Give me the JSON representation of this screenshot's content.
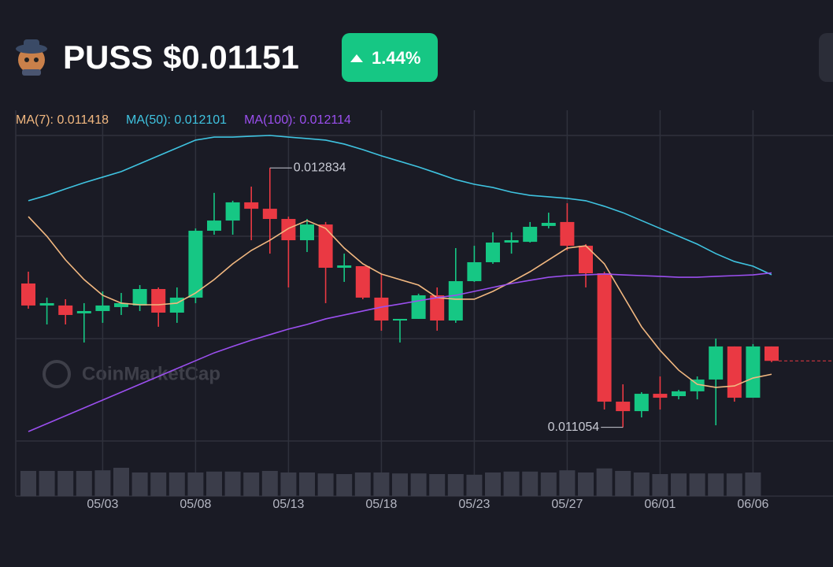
{
  "header": {
    "symbol": "PUSS",
    "price": "$0.01151",
    "change": "1.44%"
  },
  "chart_data": {
    "type": "candlestick",
    "watermark": "CoinMarketCap",
    "categories": [
      null,
      null,
      null,
      null,
      "05/03",
      null,
      null,
      null,
      null,
      "05/08",
      null,
      null,
      null,
      null,
      "05/13",
      null,
      null,
      null,
      null,
      "05/18",
      null,
      null,
      null,
      null,
      "05/23",
      null,
      null,
      null,
      null,
      "05/27",
      null,
      null,
      null,
      null,
      "06/01",
      null,
      null,
      null,
      null,
      "06/06",
      null
    ],
    "open": [
      0.012041,
      0.01189,
      0.01189,
      0.011836,
      0.011852,
      0.011879,
      0.01189,
      0.012003,
      0.011841,
      0.011944,
      0.012403,
      0.012473,
      0.012598,
      0.012554,
      0.012484,
      0.012338,
      0.012446,
      0.012149,
      0.01216,
      0.011944,
      0.011787,
      0.011798,
      0.01196,
      0.011787,
      0.012057,
      0.012187,
      0.012322,
      0.012327,
      0.012436,
      0.012463,
      0.0123,
      0.012111,
      0.01123,
      0.011165,
      0.011284,
      0.011268,
      0.011301,
      0.011382,
      0.011609,
      0.011257,
      0.011609
    ],
    "high": [
      0.012122,
      0.011944,
      0.011933,
      0.011906,
      0.011987,
      0.011976,
      0.01203,
      0.012014,
      0.012014,
      0.012419,
      0.012663,
      0.012609,
      0.012706,
      0.012834,
      0.0125,
      0.012484,
      0.012463,
      0.012246,
      0.01216,
      0.012106,
      0.011798,
      0.011971,
      0.012014,
      0.012284,
      0.0123,
      0.012392,
      0.012392,
      0.012463,
      0.012527,
      0.012592,
      0.012311,
      0.012122,
      0.011349,
      0.011295,
      0.011403,
      0.011311,
      0.011403,
      0.011663,
      0.011609,
      0.011625,
      0.011609
    ],
    "low": [
      0.011868,
      0.01176,
      0.01176,
      0.011636,
      0.011771,
      0.011825,
      0.011852,
      0.011744,
      0.011771,
      0.011906,
      0.012376,
      0.012376,
      0.012338,
      0.012246,
      0.012014,
      0.012257,
      0.011906,
      0.012052,
      0.011933,
      0.011717,
      0.011636,
      0.011798,
      0.011717,
      0.011771,
      0.012052,
      0.012176,
      0.012246,
      0.012322,
      0.012419,
      0.012268,
      0.012014,
      0.011176,
      0.011054,
      0.011122,
      0.011176,
      0.011246,
      0.011246,
      0.011068,
      0.01123,
      0.011257,
      0.011501
    ],
    "close": [
      0.01189,
      0.011906,
      0.011825,
      0.011852,
      0.01189,
      0.011906,
      0.012003,
      0.011841,
      0.011944,
      0.012403,
      0.012473,
      0.012598,
      0.012554,
      0.012484,
      0.012338,
      0.012446,
      0.012149,
      0.012165,
      0.011944,
      0.011787,
      0.011798,
      0.01196,
      0.011787,
      0.012057,
      0.012187,
      0.012322,
      0.012338,
      0.01243,
      0.012457,
      0.0123,
      0.012111,
      0.01123,
      0.011165,
      0.011284,
      0.011257,
      0.011301,
      0.011382,
      0.011609,
      0.011257,
      0.011609,
      0.01151
    ],
    "volume": [
      80,
      80,
      80,
      80,
      82,
      90,
      75,
      75,
      75,
      75,
      78,
      78,
      75,
      80,
      75,
      75,
      72,
      70,
      75,
      75,
      72,
      72,
      70,
      70,
      68,
      75,
      78,
      78,
      75,
      82,
      75,
      88,
      80,
      75,
      70,
      72,
      72,
      72,
      72,
      75,
      null
    ],
    "vlim": [
      0,
      100
    ],
    "up_color": "#16c784",
    "down_color": "#ea3943",
    "volume_color": "#3b3d4a",
    "ylim": [
      0.01096,
      0.01323
    ],
    "series": [
      {
        "name": "MA(7): 0.011418",
        "color": "#f2b880",
        "values": [
          0.0125,
          0.012365,
          0.012203,
          0.012068,
          0.01196,
          0.011906,
          0.011895,
          0.011895,
          0.011906,
          0.011976,
          0.012068,
          0.012176,
          0.012268,
          0.012338,
          0.012419,
          0.012473,
          0.012419,
          0.012284,
          0.012176,
          0.012106,
          0.012068,
          0.01203,
          0.011944,
          0.011933,
          0.011933,
          0.011987,
          0.012052,
          0.012122,
          0.012203,
          0.012284,
          0.0123,
          0.012176,
          0.01196,
          0.011744,
          0.011582,
          0.011446,
          0.011349,
          0.011328,
          0.011338,
          0.011392,
          0.011418
        ]
      },
      {
        "name": "MA(50): 0.012101",
        "color": "#3fc3e0",
        "values": [
          0.012609,
          0.012646,
          0.01269,
          0.012733,
          0.012771,
          0.012809,
          0.012863,
          0.012917,
          0.012971,
          0.013025,
          0.013046,
          0.013046,
          0.013052,
          0.013057,
          0.013046,
          0.013036,
          0.013025,
          0.012998,
          0.01296,
          0.012917,
          0.012879,
          0.012841,
          0.012798,
          0.012754,
          0.012722,
          0.0127,
          0.012668,
          0.012646,
          0.012636,
          0.012625,
          0.012609,
          0.012571,
          0.012527,
          0.012473,
          0.012419,
          0.012365,
          0.012311,
          0.012246,
          0.012192,
          0.01216,
          0.012101
        ]
      },
      {
        "name": "MA(100): 0.012114",
        "color": "#9b4fef",
        "values": [
          0.011025,
          0.011079,
          0.011133,
          0.011187,
          0.011241,
          0.011295,
          0.011349,
          0.011403,
          0.011457,
          0.011511,
          0.011565,
          0.011609,
          0.011652,
          0.01169,
          0.011728,
          0.01176,
          0.011798,
          0.011825,
          0.011852,
          0.011879,
          0.0119,
          0.011922,
          0.011944,
          0.01196,
          0.011987,
          0.012014,
          0.012041,
          0.012063,
          0.012084,
          0.012095,
          0.0121,
          0.012106,
          0.0121,
          0.012095,
          0.01209,
          0.012084,
          0.012084,
          0.01209,
          0.012095,
          0.0121,
          0.012114
        ]
      }
    ]
  }
}
